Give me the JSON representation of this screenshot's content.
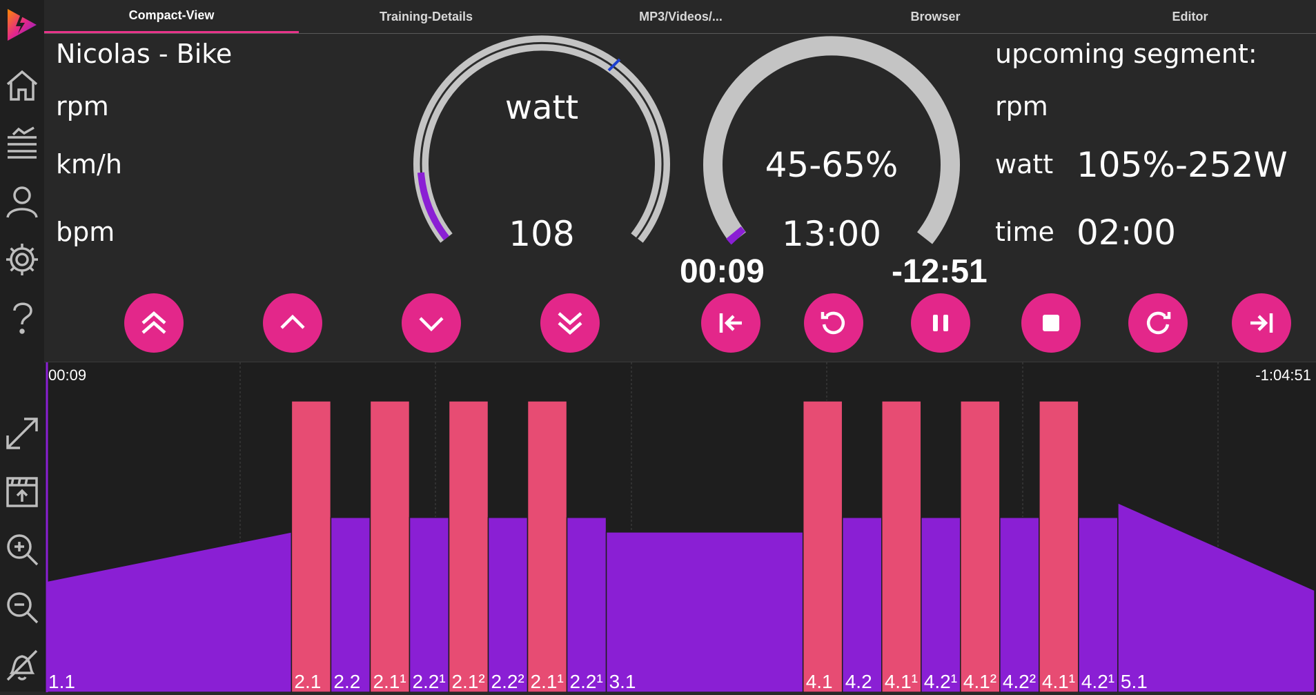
{
  "tabs": [
    {
      "label": "Compact-View",
      "active": true
    },
    {
      "label": "Training-Details",
      "active": false
    },
    {
      "label": "MP3/Videos/...",
      "active": false
    },
    {
      "label": "Browser",
      "active": false
    },
    {
      "label": "Editor",
      "active": false
    }
  ],
  "sidebar": {
    "icons": [
      "app-logo-icon",
      "home-icon",
      "training-list-icon",
      "user-icon",
      "settings-icon",
      "help-icon",
      "expand-icon",
      "upload-icon",
      "zoom-in-icon",
      "zoom-out-icon",
      "mute-bell-icon"
    ]
  },
  "left_panel": {
    "title": "Nicolas - Bike",
    "rpm_label": "rpm",
    "speed_label": "km/h",
    "heart_label": "bpm"
  },
  "watt_gauge": {
    "label": "watt",
    "value": "108"
  },
  "segment_gauge": {
    "range": "45-65%",
    "duration": "13:00",
    "elapsed": "00:09",
    "remaining": "-12:51"
  },
  "upcoming": {
    "title": "upcoming segment:",
    "rpm_label": "rpm",
    "watt_label": "watt",
    "watt_value": "105%-252W",
    "time_label": "time",
    "time_value": "02:00"
  },
  "controls": [
    "power-up-fast-icon",
    "power-up-icon",
    "power-down-icon",
    "power-down-fast-icon",
    "skip-back-icon",
    "restart-segment-icon",
    "pause-icon",
    "stop-icon",
    "redo-icon",
    "skip-forward-icon"
  ],
  "colors": {
    "accent": "#e3278a",
    "interval": "#e74c73",
    "recovery": "#8a1fd4",
    "background": "#282828"
  },
  "chart_data": {
    "type": "area",
    "elapsed_label": "00:09",
    "remaining_label": "-1:04:51",
    "segments": [
      {
        "label": "1.1",
        "w": 15,
        "y0": 0.38,
        "y1": 0.55,
        "kind": "recovery"
      },
      {
        "label": "2.1",
        "w": 2.4,
        "y0": 1.0,
        "y1": 1.0,
        "kind": "interval"
      },
      {
        "label": "2.2",
        "w": 2.4,
        "y0": 0.6,
        "y1": 0.6,
        "kind": "recovery"
      },
      {
        "label": "2.1¹",
        "w": 2.4,
        "y0": 1.0,
        "y1": 1.0,
        "kind": "interval"
      },
      {
        "label": "2.2¹",
        "w": 2.4,
        "y0": 0.6,
        "y1": 0.6,
        "kind": "recovery"
      },
      {
        "label": "2.1²",
        "w": 2.4,
        "y0": 1.0,
        "y1": 1.0,
        "kind": "interval"
      },
      {
        "label": "2.2²",
        "w": 2.4,
        "y0": 0.6,
        "y1": 0.6,
        "kind": "recovery"
      },
      {
        "label": "2.1¹",
        "w": 2.4,
        "y0": 1.0,
        "y1": 1.0,
        "kind": "interval"
      },
      {
        "label": "2.2¹",
        "w": 2.4,
        "y0": 0.6,
        "y1": 0.6,
        "kind": "recovery"
      },
      {
        "label": "3.1",
        "w": 12,
        "y0": 0.55,
        "y1": 0.55,
        "kind": "recovery"
      },
      {
        "label": "4.1",
        "w": 2.4,
        "y0": 1.0,
        "y1": 1.0,
        "kind": "interval"
      },
      {
        "label": "4.2",
        "w": 2.4,
        "y0": 0.6,
        "y1": 0.6,
        "kind": "recovery"
      },
      {
        "label": "4.1¹",
        "w": 2.4,
        "y0": 1.0,
        "y1": 1.0,
        "kind": "interval"
      },
      {
        "label": "4.2¹",
        "w": 2.4,
        "y0": 0.6,
        "y1": 0.6,
        "kind": "recovery"
      },
      {
        "label": "4.1²",
        "w": 2.4,
        "y0": 1.0,
        "y1": 1.0,
        "kind": "interval"
      },
      {
        "label": "4.2²",
        "w": 2.4,
        "y0": 0.6,
        "y1": 0.6,
        "kind": "recovery"
      },
      {
        "label": "4.1¹",
        "w": 2.4,
        "y0": 1.0,
        "y1": 1.0,
        "kind": "interval"
      },
      {
        "label": "4.2¹",
        "w": 2.4,
        "y0": 0.6,
        "y1": 0.6,
        "kind": "recovery"
      },
      {
        "label": "5.1",
        "w": 12,
        "y0": 0.65,
        "y1": 0.35,
        "kind": "recovery"
      }
    ]
  }
}
